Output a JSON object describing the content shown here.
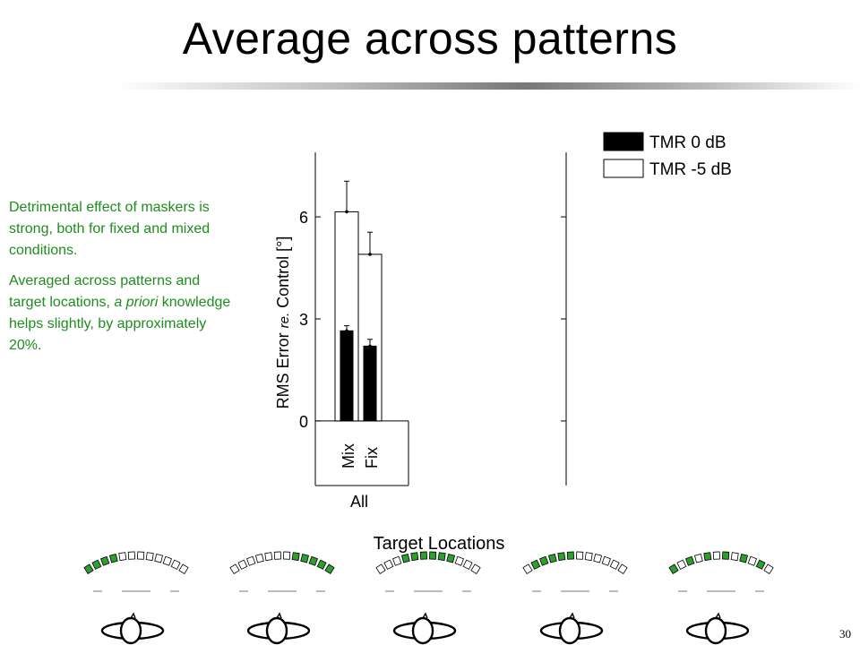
{
  "slide": {
    "title": "Average across patterns",
    "paragraph1": "Detrimental effect of maskers is strong, both for fixed and mixed conditions.",
    "paragraph2_pre": "Averaged across patterns and target locations, ",
    "paragraph2_em": "a priori",
    "paragraph2_post": " knowledge helps slightly, by approximately 20%.",
    "page_number": "30",
    "text_color": "#1e8c1e",
    "pattern_marker_color": "#2e9e2e"
  },
  "chart_data": {
    "type": "bar",
    "ylabel_pre": "RMS Error",
    "ylabel_em": "re.",
    "ylabel_post": "Control [°]",
    "xlabel": "Target Locations",
    "group_label": "All",
    "ylim": [
      -1.9,
      7.9
    ],
    "yticks": [
      0,
      3,
      6
    ],
    "categories": [
      "Mix",
      "Fix"
    ],
    "series": [
      {
        "name": "TMR 0 dB",
        "color": "#000000",
        "values": [
          2.65,
          2.2
        ],
        "errors": [
          0.15,
          0.2
        ]
      },
      {
        "name": "TMR -5 dB",
        "color": "#ffffff",
        "values": [
          6.15,
          4.9
        ],
        "errors": [
          0.9,
          0.65
        ]
      }
    ],
    "legend_position": "top-right"
  }
}
